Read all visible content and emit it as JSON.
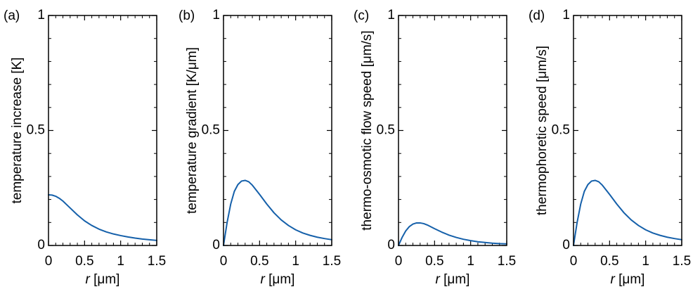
{
  "chart_data": [
    {
      "panel_label": "(a)",
      "type": "line",
      "ylabel": "temperature increase [K]",
      "xlabel_var": "r",
      "xlabel_unit": " [μm]",
      "xlim": [
        0,
        1.5
      ],
      "ylim": [
        0,
        1
      ],
      "xticks": [
        0,
        0.5,
        1,
        1.5
      ],
      "xtick_labels": [
        "0",
        "0.5",
        "1",
        "1.5"
      ],
      "yticks": [
        0,
        0.5,
        1
      ],
      "ytick_labels": [
        "0",
        "0.5",
        "1"
      ],
      "color": "#1560aa",
      "x": [
        0,
        0.05,
        0.1,
        0.15,
        0.2,
        0.25,
        0.3,
        0.4,
        0.5,
        0.6,
        0.7,
        0.8,
        0.9,
        1.0,
        1.1,
        1.2,
        1.3,
        1.4,
        1.5
      ],
      "y": [
        0.22,
        0.219,
        0.214,
        0.205,
        0.193,
        0.178,
        0.163,
        0.133,
        0.107,
        0.087,
        0.071,
        0.059,
        0.05,
        0.043,
        0.037,
        0.032,
        0.028,
        0.025,
        0.022
      ]
    },
    {
      "panel_label": "(b)",
      "type": "line",
      "ylabel": "temperature gradient [K/μm]",
      "xlabel_var": "r",
      "xlabel_unit": " [μm]",
      "xlim": [
        0,
        1.5
      ],
      "ylim": [
        0,
        1
      ],
      "xticks": [
        0,
        0.5,
        1,
        1.5
      ],
      "xtick_labels": [
        "0",
        "0.5",
        "1",
        "1.5"
      ],
      "yticks": [
        0,
        0.5,
        1
      ],
      "ytick_labels": [
        "0",
        "0.5",
        "1"
      ],
      "color": "#1560aa",
      "x": [
        0,
        0.05,
        0.1,
        0.15,
        0.2,
        0.25,
        0.3,
        0.35,
        0.4,
        0.5,
        0.6,
        0.7,
        0.8,
        0.9,
        1.0,
        1.1,
        1.2,
        1.3,
        1.4,
        1.5
      ],
      "y": [
        0,
        0.1,
        0.18,
        0.235,
        0.265,
        0.28,
        0.283,
        0.277,
        0.262,
        0.222,
        0.18,
        0.142,
        0.111,
        0.087,
        0.068,
        0.054,
        0.044,
        0.036,
        0.03,
        0.025
      ]
    },
    {
      "panel_label": "(c)",
      "type": "line",
      "ylabel": "thermo-osmotic flow speed [μm/s]",
      "xlabel_var": "r",
      "xlabel_unit": " [μm]",
      "xlim": [
        0,
        1.5
      ],
      "ylim": [
        0,
        1
      ],
      "xticks": [
        0,
        0.5,
        1,
        1.5
      ],
      "xtick_labels": [
        "0",
        "0.5",
        "1",
        "1.5"
      ],
      "yticks": [
        0,
        0.5,
        1
      ],
      "ytick_labels": [
        "0",
        "0.5",
        "1"
      ],
      "color": "#1560aa",
      "x": [
        0,
        0.05,
        0.1,
        0.15,
        0.2,
        0.25,
        0.3,
        0.35,
        0.4,
        0.5,
        0.6,
        0.7,
        0.8,
        0.9,
        1.0,
        1.1,
        1.2,
        1.3,
        1.4,
        1.5
      ],
      "y": [
        0,
        0.035,
        0.063,
        0.082,
        0.093,
        0.098,
        0.098,
        0.095,
        0.089,
        0.073,
        0.058,
        0.045,
        0.035,
        0.027,
        0.021,
        0.016,
        0.013,
        0.01,
        0.008,
        0.007
      ]
    },
    {
      "panel_label": "(d)",
      "type": "line",
      "ylabel": "thermophoretic speed [μm/s]",
      "xlabel_var": "r",
      "xlabel_unit": " [μm]",
      "xlim": [
        0,
        1.5
      ],
      "ylim": [
        0,
        1
      ],
      "xticks": [
        0,
        0.5,
        1,
        1.5
      ],
      "xtick_labels": [
        "0",
        "0.5",
        "1",
        "1.5"
      ],
      "yticks": [
        0,
        0.5,
        1
      ],
      "ytick_labels": [
        "0",
        "0.5",
        "1"
      ],
      "color": "#1560aa",
      "x": [
        0,
        0.05,
        0.1,
        0.15,
        0.2,
        0.25,
        0.3,
        0.35,
        0.4,
        0.5,
        0.6,
        0.7,
        0.8,
        0.9,
        1.0,
        1.1,
        1.2,
        1.3,
        1.4,
        1.5
      ],
      "y": [
        0,
        0.1,
        0.18,
        0.235,
        0.265,
        0.28,
        0.283,
        0.277,
        0.262,
        0.222,
        0.18,
        0.142,
        0.111,
        0.087,
        0.068,
        0.054,
        0.044,
        0.036,
        0.03,
        0.025
      ]
    }
  ]
}
